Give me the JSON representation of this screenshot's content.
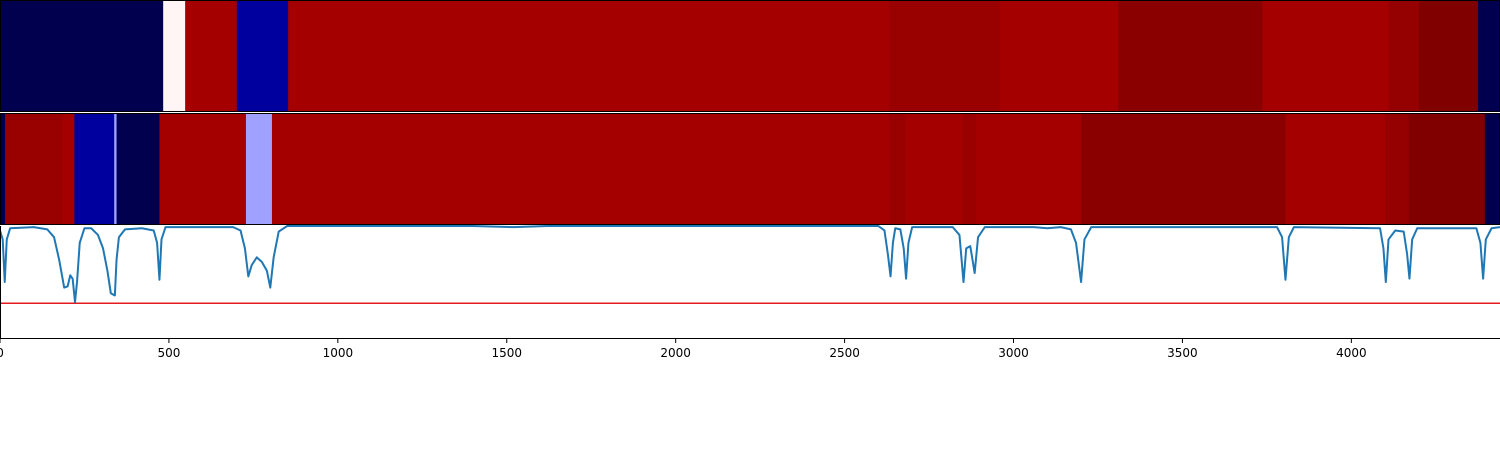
{
  "chart_data": {
    "type": "heatmap",
    "title": "",
    "xlim": [
      0,
      4440
    ],
    "x_ticks": [
      0,
      500,
      1000,
      1500,
      2000,
      2500,
      3000,
      3500,
      4000
    ],
    "x_tick_labels": [
      "0",
      "500",
      "1000",
      "1500",
      "2000",
      "2500",
      "3000",
      "3500",
      "4000"
    ],
    "heatmap_rows": [
      {
        "segments": [
          {
            "x0": 0,
            "x1": 483,
            "color": "#00004e"
          },
          {
            "x0": 483,
            "x1": 548,
            "color": "#fff5f5"
          },
          {
            "x0": 548,
            "x1": 701,
            "color": "#a50000"
          },
          {
            "x0": 701,
            "x1": 853,
            "color": "#00009f"
          },
          {
            "x0": 853,
            "x1": 2632,
            "color": "#a50000"
          },
          {
            "x0": 2632,
            "x1": 2960,
            "color": "#990000"
          },
          {
            "x0": 2960,
            "x1": 3310,
            "color": "#a50000"
          },
          {
            "x0": 3310,
            "x1": 3737,
            "color": "#8a0000"
          },
          {
            "x0": 3737,
            "x1": 4110,
            "color": "#a50000"
          },
          {
            "x0": 4110,
            "x1": 4200,
            "color": "#950000"
          },
          {
            "x0": 4200,
            "x1": 4375,
            "color": "#800000"
          },
          {
            "x0": 4375,
            "x1": 4440,
            "color": "#00004e"
          }
        ]
      },
      {
        "segments": [
          {
            "x0": 0,
            "x1": 15,
            "color": "#00004e"
          },
          {
            "x0": 15,
            "x1": 185,
            "color": "#990000"
          },
          {
            "x0": 185,
            "x1": 220,
            "color": "#a50000"
          },
          {
            "x0": 220,
            "x1": 338,
            "color": "#00009f"
          },
          {
            "x0": 338,
            "x1": 345,
            "color": "#a0a0ff"
          },
          {
            "x0": 345,
            "x1": 472,
            "color": "#00004e"
          },
          {
            "x0": 472,
            "x1": 728,
            "color": "#a50000"
          },
          {
            "x0": 728,
            "x1": 805,
            "color": "#a0a0ff"
          },
          {
            "x0": 805,
            "x1": 2632,
            "color": "#a50000"
          },
          {
            "x0": 2632,
            "x1": 2680,
            "color": "#990000"
          },
          {
            "x0": 2680,
            "x1": 2850,
            "color": "#a50000"
          },
          {
            "x0": 2850,
            "x1": 2888,
            "color": "#990000"
          },
          {
            "x0": 2888,
            "x1": 3200,
            "color": "#a50000"
          },
          {
            "x0": 3200,
            "x1": 3805,
            "color": "#8a0000"
          },
          {
            "x0": 3805,
            "x1": 4100,
            "color": "#a50000"
          },
          {
            "x0": 4100,
            "x1": 4170,
            "color": "#950000"
          },
          {
            "x0": 4170,
            "x1": 4395,
            "color": "#800000"
          },
          {
            "x0": 4395,
            "x1": 4440,
            "color": "#00004e"
          }
        ]
      }
    ],
    "line": {
      "color": "#1f77b4",
      "ylim": [
        0,
        1
      ],
      "points": [
        [
          0,
          0.96
        ],
        [
          8,
          0.88
        ],
        [
          14,
          0.5
        ],
        [
          20,
          0.88
        ],
        [
          30,
          0.98
        ],
        [
          100,
          0.99
        ],
        [
          140,
          0.97
        ],
        [
          160,
          0.9
        ],
        [
          175,
          0.7
        ],
        [
          190,
          0.45
        ],
        [
          200,
          0.46
        ],
        [
          208,
          0.56
        ],
        [
          215,
          0.53
        ],
        [
          222,
          0.32
        ],
        [
          228,
          0.5
        ],
        [
          236,
          0.85
        ],
        [
          250,
          0.98
        ],
        [
          270,
          0.98
        ],
        [
          290,
          0.92
        ],
        [
          305,
          0.8
        ],
        [
          318,
          0.6
        ],
        [
          328,
          0.4
        ],
        [
          340,
          0.38
        ],
        [
          345,
          0.7
        ],
        [
          352,
          0.9
        ],
        [
          370,
          0.97
        ],
        [
          420,
          0.98
        ],
        [
          455,
          0.96
        ],
        [
          465,
          0.85
        ],
        [
          472,
          0.52
        ],
        [
          478,
          0.88
        ],
        [
          490,
          0.99
        ],
        [
          690,
          0.99
        ],
        [
          712,
          0.96
        ],
        [
          725,
          0.8
        ],
        [
          735,
          0.55
        ],
        [
          745,
          0.65
        ],
        [
          760,
          0.72
        ],
        [
          775,
          0.68
        ],
        [
          790,
          0.6
        ],
        [
          800,
          0.45
        ],
        [
          810,
          0.72
        ],
        [
          825,
          0.95
        ],
        [
          850,
          1.0
        ],
        [
          1400,
          1.0
        ],
        [
          1520,
          0.99
        ],
        [
          1620,
          1.0
        ],
        [
          2600,
          1.0
        ],
        [
          2618,
          0.96
        ],
        [
          2628,
          0.75
        ],
        [
          2636,
          0.55
        ],
        [
          2643,
          0.85
        ],
        [
          2650,
          0.98
        ],
        [
          2665,
          0.97
        ],
        [
          2675,
          0.8
        ],
        [
          2682,
          0.53
        ],
        [
          2689,
          0.85
        ],
        [
          2700,
          0.99
        ],
        [
          2820,
          0.99
        ],
        [
          2840,
          0.92
        ],
        [
          2852,
          0.5
        ],
        [
          2860,
          0.8
        ],
        [
          2872,
          0.82
        ],
        [
          2885,
          0.58
        ],
        [
          2895,
          0.9
        ],
        [
          2915,
          0.99
        ],
        [
          3060,
          0.99
        ],
        [
          3100,
          0.98
        ],
        [
          3140,
          0.99
        ],
        [
          3170,
          0.97
        ],
        [
          3185,
          0.85
        ],
        [
          3200,
          0.5
        ],
        [
          3210,
          0.88
        ],
        [
          3230,
          0.99
        ],
        [
          3780,
          0.99
        ],
        [
          3795,
          0.9
        ],
        [
          3805,
          0.52
        ],
        [
          3815,
          0.9
        ],
        [
          3830,
          0.99
        ],
        [
          4085,
          0.98
        ],
        [
          4095,
          0.8
        ],
        [
          4102,
          0.5
        ],
        [
          4110,
          0.88
        ],
        [
          4130,
          0.96
        ],
        [
          4155,
          0.95
        ],
        [
          4165,
          0.75
        ],
        [
          4172,
          0.53
        ],
        [
          4180,
          0.88
        ],
        [
          4195,
          0.98
        ],
        [
          4370,
          0.98
        ],
        [
          4382,
          0.85
        ],
        [
          4390,
          0.53
        ],
        [
          4398,
          0.88
        ],
        [
          4415,
          0.98
        ],
        [
          4440,
          0.99
        ]
      ]
    },
    "threshold": {
      "y": 0.31,
      "color": "#e41a1c"
    }
  }
}
